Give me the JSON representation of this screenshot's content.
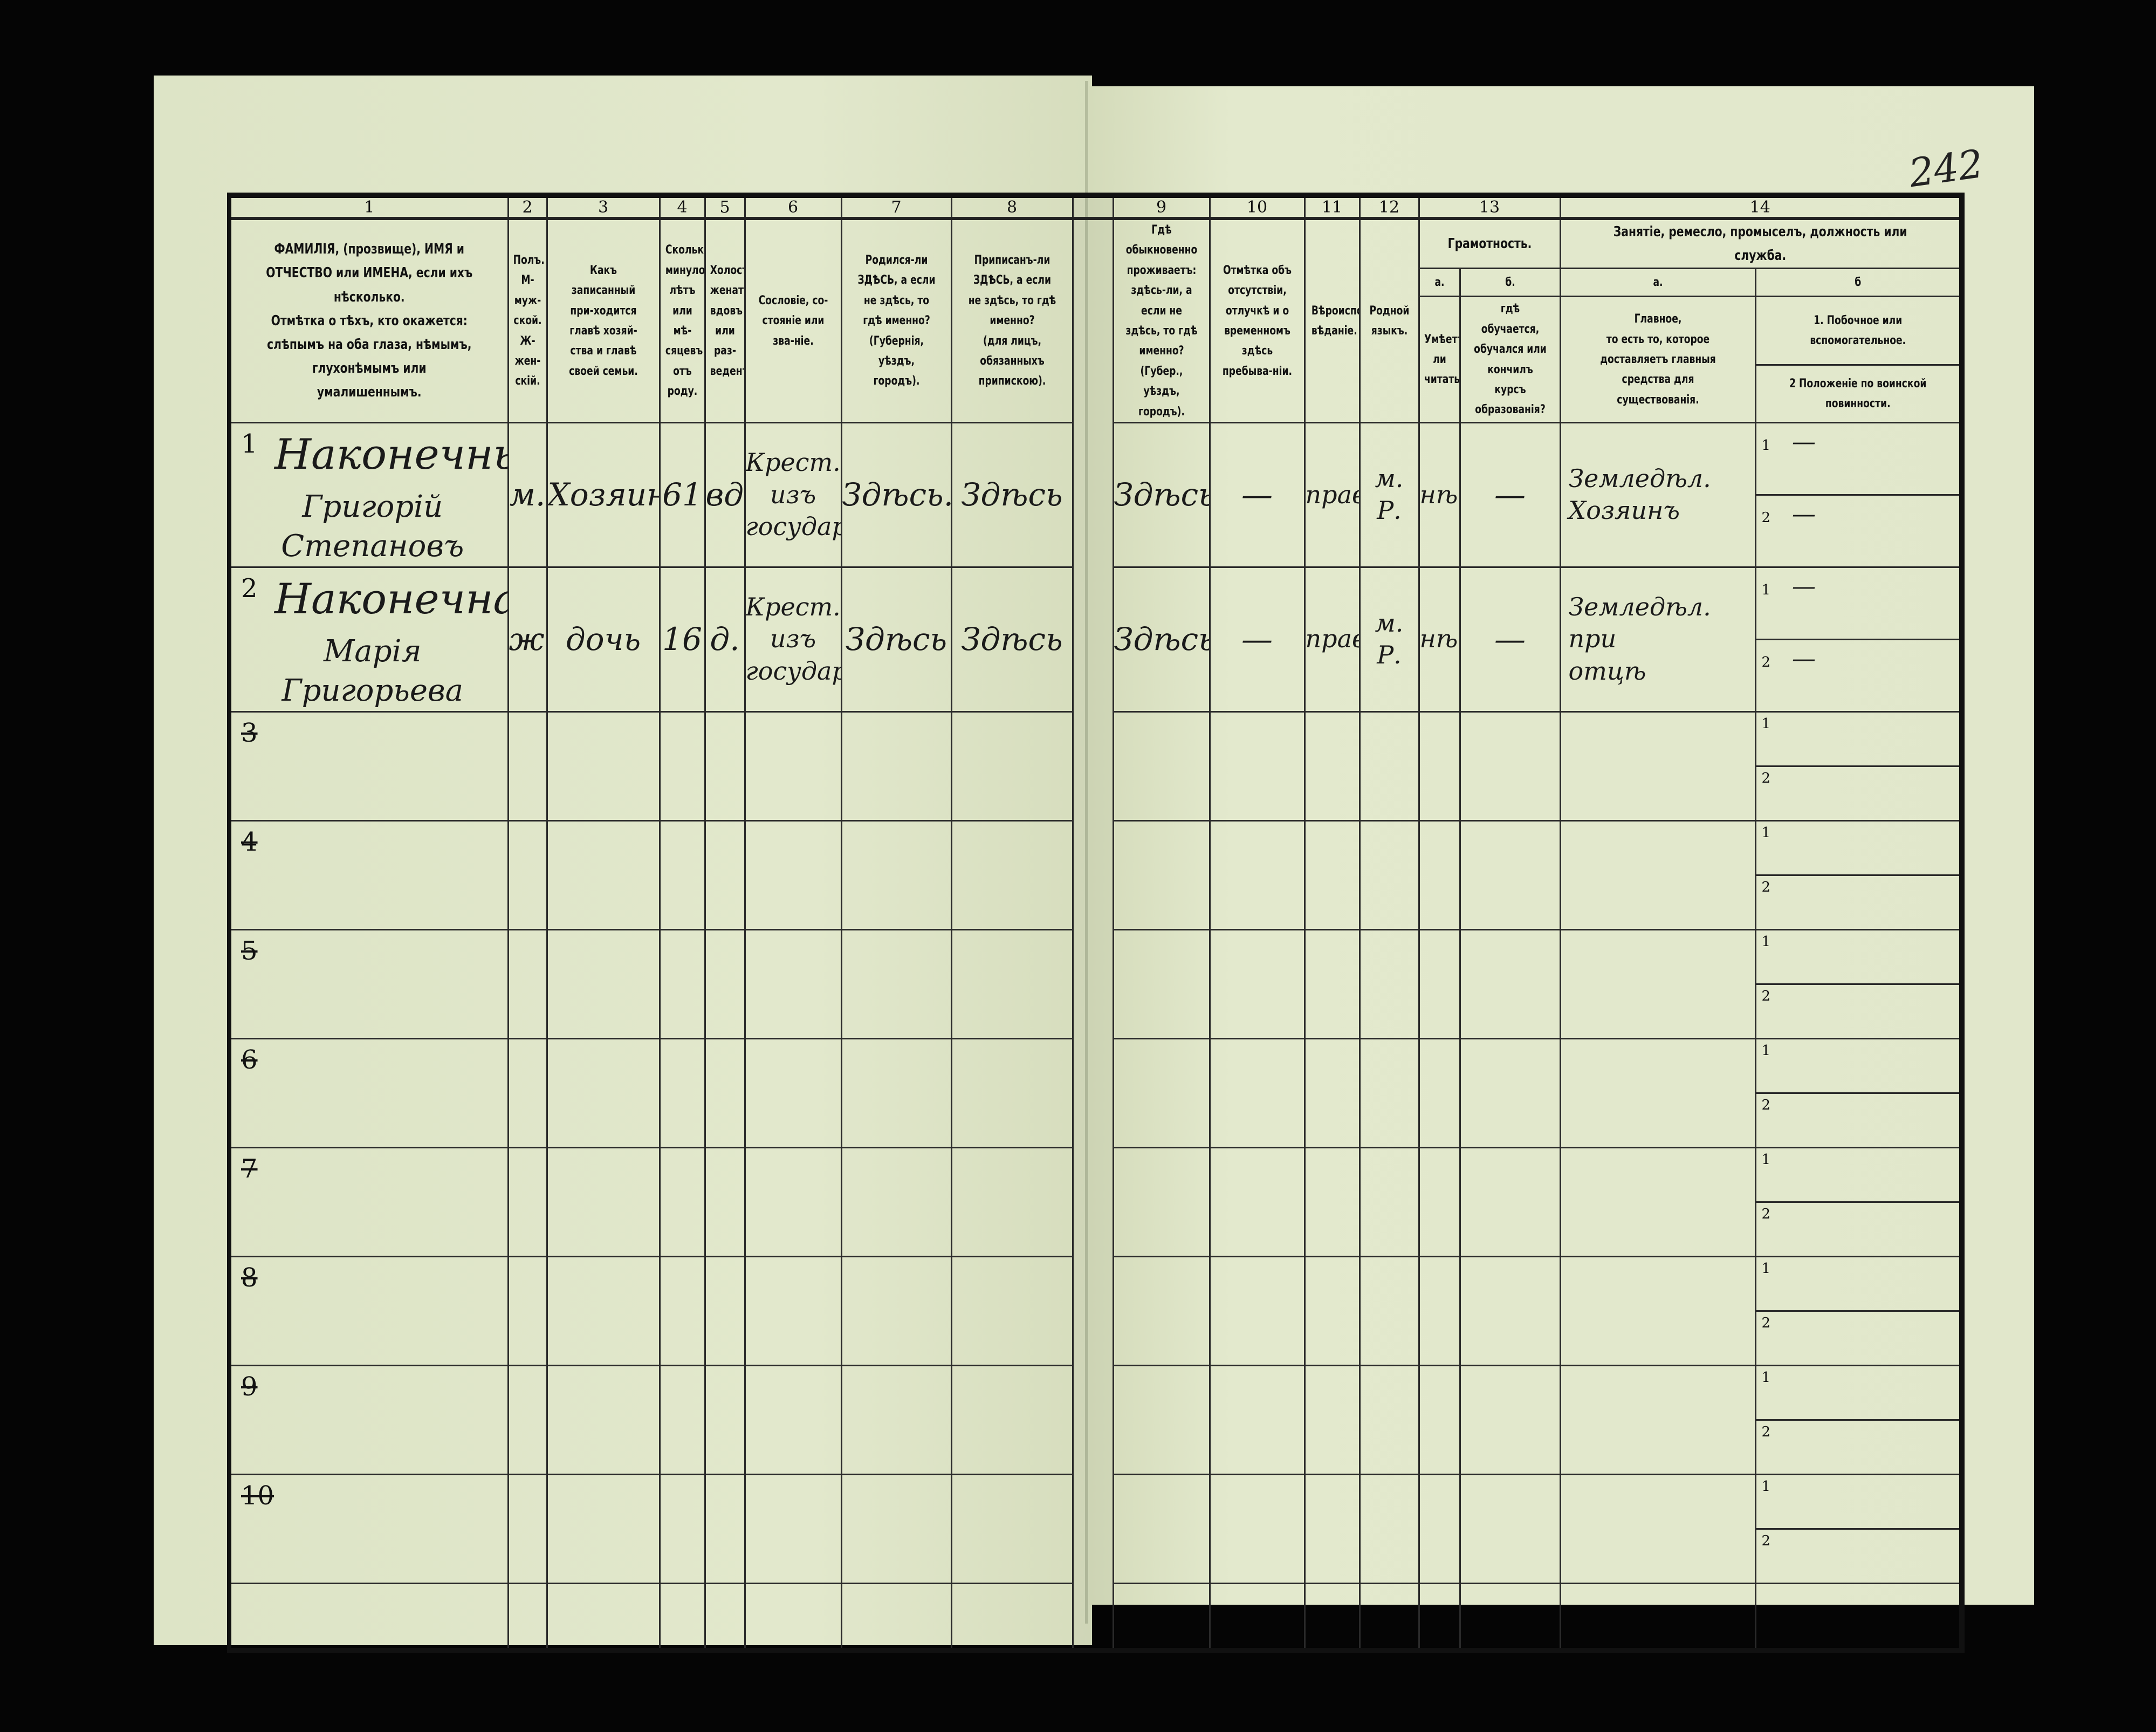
{
  "page_number": "242",
  "header": {
    "columns": [
      {
        "num": "1",
        "text": "ФАМИЛІЯ, (прозвище), ИМЯ и ОТЧЕСТВО или ИМЕНА, если ихъ нѣсколько.\nОтмѣтка о тѣхъ, кто окажется: слѣпымъ на оба глаза, нѣмымъ, глухонѣмымъ или умалишеннымъ."
      },
      {
        "num": "2",
        "text": "Полъ.\nМ-муж-ской.\nЖ-жен-скій."
      },
      {
        "num": "3",
        "text": "Какъ записанный при-ходится главѣ хозяй-ства и главѣ своей семьи."
      },
      {
        "num": "4",
        "text": "Сколько минуло лѣтъ или мѣ-сяцевъ отъ роду."
      },
      {
        "num": "5",
        "text": "Холостъ, женатъ, вдовъ или раз-веденъ."
      },
      {
        "num": "6",
        "text": "Сословіе, со-стояніе или зва-ніе."
      },
      {
        "num": "7",
        "text": "Родился-ли ЗДѢСЬ, а если не здѣсь, то гдѣ именно?\n(Губернія, уѣздъ, городъ)."
      },
      {
        "num": "8",
        "text": "Приписанъ-ли ЗДѢСЬ, а если не здѣсь, то гдѣ именно?\n(для лицъ, обязанныхъ припискою)."
      },
      {
        "num": "9",
        "text": "Гдѣ обыкновенно проживаетъ: здѣсь-ли, а если не здѣсь, то гдѣ именно?\n(Губер., уѣздъ, городъ)."
      },
      {
        "num": "10",
        "text": "Отмѣтка объ отсутствіи, отлучкѣ и о временномъ здѣсь пребыва-ніи."
      },
      {
        "num": "11",
        "text": "Вѣроиспо-вѣданіе."
      },
      {
        "num": "12",
        "text": "Родной языкъ."
      }
    ],
    "col13": {
      "num": "13",
      "title": "Грамотность.",
      "a_label": "а.",
      "b_label": "б.",
      "a_text": "Умѣетъ-ли читать?",
      "b_text": "гдѣ обучается, обучался или кончилъ курсъ образованія?"
    },
    "col14": {
      "num": "14",
      "title": "Занятіе, ремесло, промыселъ, должность или служба.",
      "a_label": "а.",
      "b_label": "б",
      "a_text": "Главное,\nто есть то, которое доставляетъ главныя средства для существованія.",
      "b1_text": "1. Побочное или вспомогательное.",
      "b2_text": "2 Положеніе по воинской повинности."
    }
  },
  "sub_labels": [
    "1",
    "2"
  ],
  "entries": [
    {
      "no": "1",
      "surname": "Наконечный",
      "given": "Григорій Степановъ",
      "sex": "м.",
      "relation": "Хозяинъ",
      "age": "61",
      "marital": "вд.",
      "estate": "Крест.\nизъ\nгосудар.",
      "born": "Здѣсь.",
      "registered": "Здѣсь",
      "residence": "Здѣсь",
      "absence": "—",
      "religion": "прав.",
      "language": "м. Р.",
      "literate": "нѣт",
      "education": "—",
      "occupation": "Земледѣл.\nХозяинъ",
      "side": "—",
      "military": "—"
    },
    {
      "no": "2",
      "surname": "Наконечная",
      "given": "Марія Григорьева",
      "sex": "ж.",
      "relation": "дочь",
      "age": "16",
      "marital": "д.",
      "estate": "Крест.\nизъ\nгосудар.",
      "born": "Здѣсь",
      "registered": "Здѣсь",
      "residence": "Здѣсь",
      "absence": "—",
      "religion": "прав.",
      "language": "м. Р.",
      "literate": "нѣт",
      "education": "—",
      "occupation": "Земледѣл. при\nотцѣ",
      "side": "—",
      "military": "—"
    },
    {
      "no": "3"
    },
    {
      "no": "4"
    },
    {
      "no": "5"
    },
    {
      "no": "6"
    },
    {
      "no": "7"
    },
    {
      "no": "8"
    },
    {
      "no": "9"
    },
    {
      "no": "10"
    }
  ]
}
